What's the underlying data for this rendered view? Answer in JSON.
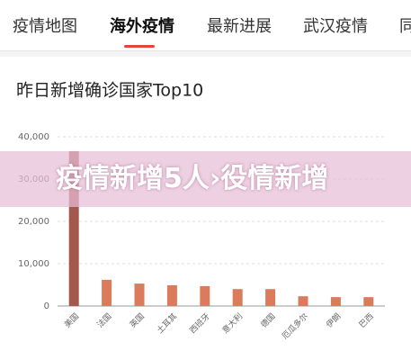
{
  "tabs": [
    "疫情地图",
    "海外疫情",
    "最新进展",
    "武汉疫情",
    "同"
  ],
  "banner": {
    "text": "疫情新增5人›役情新增"
  },
  "chart_data": {
    "type": "bar",
    "title": "昨日新增确诊国家Top10",
    "categories": [
      "美国",
      "法国",
      "英国",
      "土耳其",
      "西班牙",
      "意大利",
      "德国",
      "厄瓜多尔",
      "伊朗",
      "巴西"
    ],
    "values": [
      36600,
      6200,
      5300,
      4900,
      4700,
      4000,
      4000,
      2300,
      2100,
      2100
    ],
    "colors": [
      "#a4574b",
      "#dc7a5c",
      "#dc7a5c",
      "#dc7a5c",
      "#dc7a5c",
      "#dc7a5c",
      "#dc7a5c",
      "#dc7a5c",
      "#dc7a5c",
      "#dc7a5c"
    ],
    "ylim": [
      0,
      40000
    ],
    "yticks": [
      0,
      {
        "value": 10000,
        "label": "10,000"
      },
      {
        "value": 20000,
        "label": "20,000"
      },
      {
        "value": 30000,
        "label": "30,000"
      },
      {
        "value": 40000,
        "label": "40,000"
      }
    ],
    "grid": true
  }
}
